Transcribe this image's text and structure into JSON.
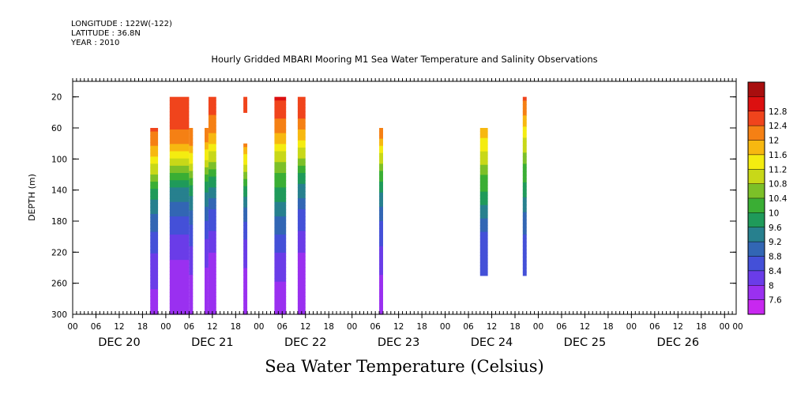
{
  "header": {
    "longitude": "LONGITUDE : 122W(-122)",
    "latitude": "LATITUDE : 36.8N",
    "year": "YEAR : 2010"
  },
  "chart_title": "Hourly Gridded MBARI Mooring M1 Sea Water Temperature and Salinity Observations",
  "main_title": "Sea Water Temperature (Celsius)",
  "chart_data": {
    "type": "heatmap",
    "xlabel": "",
    "ylabel": "DEPTH (m)",
    "hour_tick_labels": [
      "00",
      "06",
      "12",
      "18"
    ],
    "day_labels": [
      "DEC 20",
      "DEC 21",
      "DEC 22",
      "DEC 23",
      "DEC 24",
      "DEC 25",
      "DEC 26"
    ],
    "x_range_hours": [
      0,
      171
    ],
    "y_ticks": [
      20,
      60,
      100,
      140,
      180,
      220,
      260,
      300
    ],
    "ylim": [
      300,
      0
    ],
    "colorbar": {
      "levels": [
        7.6,
        8,
        8.4,
        8.8,
        9.2,
        9.6,
        10,
        10.4,
        10.8,
        11.2,
        11.6,
        12,
        12.4,
        12.8
      ],
      "colors": [
        "#c828f0",
        "#9a30f0",
        "#6a3ce8",
        "#4450d8",
        "#3266b4",
        "#27808e",
        "#1f9a5a",
        "#3aae34",
        "#7cc028",
        "#c8d818",
        "#f4ec10",
        "#f7b810",
        "#f58014",
        "#f0441c",
        "#dc1010",
        "#a80e0e"
      ]
    },
    "columns": [
      {
        "start_hour": 20,
        "end_hour": 22,
        "top_depth": 60,
        "bottom_depth": 300,
        "temps": [
          12.4,
          12.1,
          11.5,
          10.8,
          10.1,
          9.5,
          9.1,
          8.8,
          8.5,
          8.3,
          8.1,
          8.0,
          7.9
        ]
      },
      {
        "start_hour": 25,
        "end_hour": 30,
        "top_depth": 20,
        "bottom_depth": 300,
        "temps": [
          12.5,
          12.5,
          12.4,
          12.0,
          11.3,
          10.4,
          9.7,
          9.2,
          8.8,
          8.5,
          8.2,
          8.0,
          7.9,
          7.8,
          7.7
        ]
      },
      {
        "start_hour": 30,
        "end_hour": 31,
        "top_depth": 60,
        "bottom_depth": 300,
        "temps": [
          12.3,
          12.0,
          11.4,
          10.6,
          9.9,
          9.4,
          9.0,
          8.7,
          8.4,
          8.2,
          8.0,
          7.9,
          7.8
        ]
      },
      {
        "start_hour": 34,
        "end_hour": 35,
        "top_depth": 60,
        "bottom_depth": 300,
        "temps": [
          12.3,
          11.9,
          11.2,
          10.4,
          9.8,
          9.3,
          8.9,
          8.6,
          8.3,
          8.1,
          7.9,
          7.8,
          7.6
        ]
      },
      {
        "start_hour": 35,
        "end_hour": 37,
        "top_depth": 20,
        "bottom_depth": 300,
        "temps": [
          12.5,
          12.4,
          12.2,
          11.7,
          11.0,
          10.3,
          9.6,
          9.1,
          8.7,
          8.4,
          8.1,
          7.9,
          7.7,
          7.6,
          7.6
        ]
      },
      {
        "start_hour": 44,
        "end_hour": 45,
        "top_depth": 20,
        "bottom_depth": 40,
        "temps": [
          12.4,
          12.4
        ]
      },
      {
        "start_hour": 44,
        "end_hour": 45,
        "top_depth": 80,
        "bottom_depth": 300,
        "temps": [
          12.0,
          11.4,
          10.6,
          9.9,
          9.3,
          8.9,
          8.6,
          8.3,
          8.1,
          7.9,
          7.8,
          7.7
        ]
      },
      {
        "start_hour": 52,
        "end_hour": 55,
        "top_depth": 20,
        "bottom_depth": 300,
        "temps": [
          12.8,
          12.6,
          12.2,
          11.6,
          11.0,
          10.5,
          10.0,
          9.6,
          9.2,
          8.9,
          8.6,
          8.3,
          8.1,
          7.9,
          7.9
        ]
      },
      {
        "start_hour": 58,
        "end_hour": 60,
        "top_depth": 20,
        "bottom_depth": 300,
        "temps": [
          12.7,
          12.5,
          12.1,
          11.5,
          10.8,
          10.1,
          9.5,
          9.1,
          8.7,
          8.4,
          8.1,
          7.9,
          7.8,
          7.7,
          7.6
        ]
      },
      {
        "start_hour": 79,
        "end_hour": 80,
        "top_depth": 60,
        "bottom_depth": 300,
        "temps": [
          12.3,
          11.7,
          11.0,
          10.3,
          9.7,
          9.3,
          8.9,
          8.6,
          8.4,
          8.2,
          8.0,
          7.9,
          7.8
        ]
      },
      {
        "start_hour": 105,
        "end_hour": 107,
        "top_depth": 60,
        "bottom_depth": 250,
        "temps": [
          11.8,
          11.4,
          11.0,
          10.6,
          10.2,
          9.8,
          9.4,
          9.0,
          8.7,
          8.5,
          8.4
        ]
      },
      {
        "start_hour": 116,
        "end_hour": 117,
        "top_depth": 20,
        "bottom_depth": 250,
        "temps": [
          12.4,
          12.0,
          11.5,
          11.0,
          10.6,
          10.2,
          9.8,
          9.4,
          9.1,
          8.8,
          8.6,
          8.5
        ]
      }
    ]
  }
}
